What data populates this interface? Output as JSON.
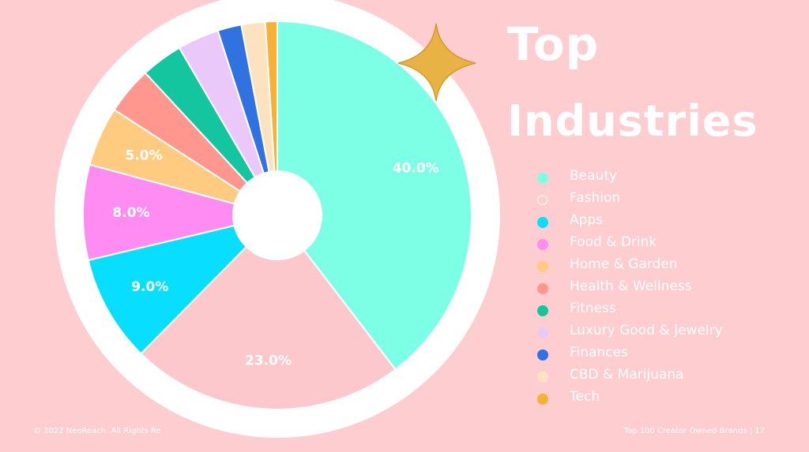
{
  "title": {
    "line1": "Top",
    "line2": "Industries"
  },
  "footer": {
    "left": "© 2022 NeoReach. All Rights Re",
    "right": "Top 100 Creator Owned Brands | 17"
  },
  "colors": {
    "background": "#fdcdd0",
    "ring": "#ffffff",
    "star": "#e8b244"
  },
  "chart_data": {
    "type": "pie",
    "donut": true,
    "start": "top",
    "direction": "clockwise",
    "slices": [
      {
        "label": "Beauty",
        "value": 40.0,
        "color": "#7dffe6",
        "data_label": "40.0%"
      },
      {
        "label": "Fashion",
        "value": 23.0,
        "color": "#fdc8cb",
        "legend_hollow": true,
        "data_label": "23.0%"
      },
      {
        "label": "Apps",
        "value": 9.0,
        "color": "#08deff",
        "data_label": "9.0%"
      },
      {
        "label": "Food & Drink",
        "value": 8.0,
        "color": "#ff8cf2",
        "data_label": "8.0%"
      },
      {
        "label": "Home & Garden",
        "value": 5.0,
        "color": "#ffcb80",
        "data_label": "5.0%"
      },
      {
        "label": "Health & Wellness",
        "value": 4.0,
        "color": "#ff978e",
        "data_label": ""
      },
      {
        "label": "Fitness",
        "value": 3.5,
        "color": "#14c6a0",
        "data_label": ""
      },
      {
        "label": "Luxury Good & Jewelry",
        "value": 3.5,
        "color": "#eac9fa",
        "data_label": ""
      },
      {
        "label": "Finances",
        "value": 2.0,
        "color": "#2f72e0",
        "data_label": ""
      },
      {
        "label": "CBD & Marijuana",
        "value": 2.0,
        "color": "#fde2c0",
        "data_label": ""
      },
      {
        "label": "Tech",
        "value": 1.0,
        "color": "#f8b133",
        "data_label": ""
      }
    ]
  }
}
